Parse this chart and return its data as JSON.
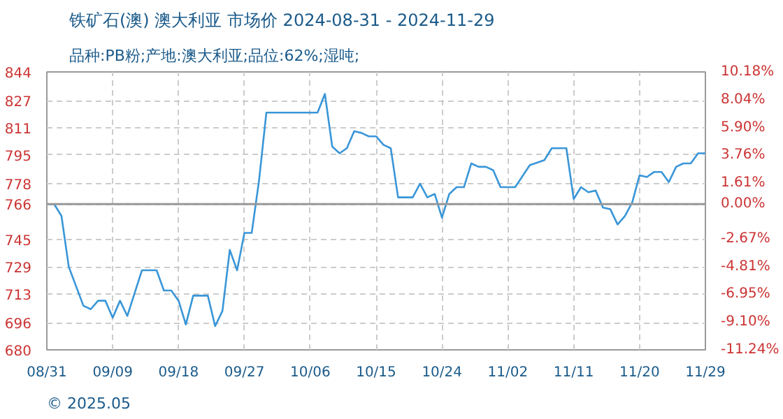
{
  "chart_data": {
    "type": "line",
    "title": "铁矿石(澳) 澳大利亚 市场价 2024-08-31 - 2024-11-29",
    "subtitle": "品种:PB粉;产地:澳大利亚;品位:62%;湿吨;",
    "annotations": [
      "© 2025.05"
    ],
    "x": [
      "2024-08-31",
      "2024-09-01",
      "2024-09-02",
      "2024-09-03",
      "2024-09-05",
      "2024-09-06",
      "2024-09-07",
      "2024-09-08",
      "2024-09-09",
      "2024-09-10",
      "2024-09-11",
      "2024-09-13",
      "2024-09-15",
      "2024-09-16",
      "2024-09-17",
      "2024-09-18",
      "2024-09-19",
      "2024-09-20",
      "2024-09-22",
      "2024-09-23",
      "2024-09-24",
      "2024-09-25",
      "2024-09-26",
      "2024-09-27",
      "2024-09-28",
      "2024-09-29",
      "2024-09-30",
      "2024-10-07",
      "2024-10-08",
      "2024-10-09",
      "2024-10-10",
      "2024-10-11",
      "2024-10-12",
      "2024-10-13",
      "2024-10-14",
      "2024-10-15",
      "2024-10-16",
      "2024-10-17",
      "2024-10-18",
      "2024-10-20",
      "2024-10-21",
      "2024-10-22",
      "2024-10-23",
      "2024-10-24",
      "2024-10-25",
      "2024-10-26",
      "2024-10-27",
      "2024-10-28",
      "2024-10-29",
      "2024-10-30",
      "2024-10-31",
      "2024-11-01",
      "2024-11-03",
      "2024-11-05",
      "2024-11-07",
      "2024-11-08",
      "2024-11-10",
      "2024-11-11",
      "2024-11-12",
      "2024-11-13",
      "2024-11-14",
      "2024-11-15",
      "2024-11-16",
      "2024-11-17",
      "2024-11-18",
      "2024-11-19",
      "2024-11-20",
      "2024-11-21",
      "2024-11-22",
      "2024-11-23",
      "2024-11-24",
      "2024-11-25",
      "2024-11-26",
      "2024-11-27",
      "2024-11-28",
      "2024-11-29"
    ],
    "series": [
      {
        "color": "#3a96d8",
        "values": [
          766,
          766,
          759,
          729,
          706,
          704,
          709,
          709,
          699,
          709,
          700,
          727,
          727,
          715,
          715,
          709,
          695,
          712,
          712,
          694,
          703,
          739,
          727,
          749,
          749,
          780,
          820,
          820,
          831,
          800,
          796,
          799,
          809,
          808,
          806,
          806,
          801,
          799,
          770,
          770,
          778,
          770,
          772,
          758,
          772,
          776,
          776,
          790,
          788,
          788,
          786,
          776,
          776,
          789,
          792,
          799,
          799,
          769,
          776,
          773,
          774,
          764,
          763,
          754,
          759,
          767,
          783,
          782,
          785,
          785,
          779,
          788,
          790,
          790,
          796,
          796
        ]
      }
    ],
    "xlim": [
      "2024-08-31",
      "2024-11-29"
    ],
    "xticks": [
      {
        "value": "2024-08-31",
        "label": "08/31"
      },
      {
        "value": "2024-09-09",
        "label": "09/09"
      },
      {
        "value": "2024-09-18",
        "label": "09/18"
      },
      {
        "value": "2024-09-27",
        "label": "09/27"
      },
      {
        "value": "2024-10-06",
        "label": "10/06"
      },
      {
        "value": "2024-10-15",
        "label": "10/15"
      },
      {
        "value": "2024-10-24",
        "label": "10/24"
      },
      {
        "value": "2024-11-02",
        "label": "11/02"
      },
      {
        "value": "2024-11-11",
        "label": "11/11"
      },
      {
        "value": "2024-11-20",
        "label": "11/20"
      },
      {
        "value": "2024-11-29",
        "label": "11/29"
      }
    ],
    "ylim": [
      680,
      844
    ],
    "yticks": [
      680,
      696,
      713,
      729,
      745,
      766,
      778,
      795,
      811,
      827,
      844
    ],
    "y2lim": [
      -11.24,
      10.18
    ],
    "y2ticks": [
      {
        "value": -11.24,
        "label": "-11.24%"
      },
      {
        "value": -9.1,
        "label": "-9.10%"
      },
      {
        "value": -6.95,
        "label": "-6.95%"
      },
      {
        "value": -4.81,
        "label": "-4.81%"
      },
      {
        "value": -2.67,
        "label": "-2.67%"
      },
      {
        "value": 0,
        "label": "0.00%"
      },
      {
        "value": 1.61,
        "label": "1.61%"
      },
      {
        "value": 3.76,
        "label": "3.76%"
      },
      {
        "value": 5.9,
        "label": "5.90%"
      },
      {
        "value": 8.04,
        "label": "8.04%"
      },
      {
        "value": 10.18,
        "label": "10.18%"
      }
    ],
    "ref_lines": [
      {
        "axis": "y",
        "value": 766,
        "color": "#999999"
      }
    ],
    "grid": true,
    "marker": "none",
    "line_style": "solid"
  }
}
